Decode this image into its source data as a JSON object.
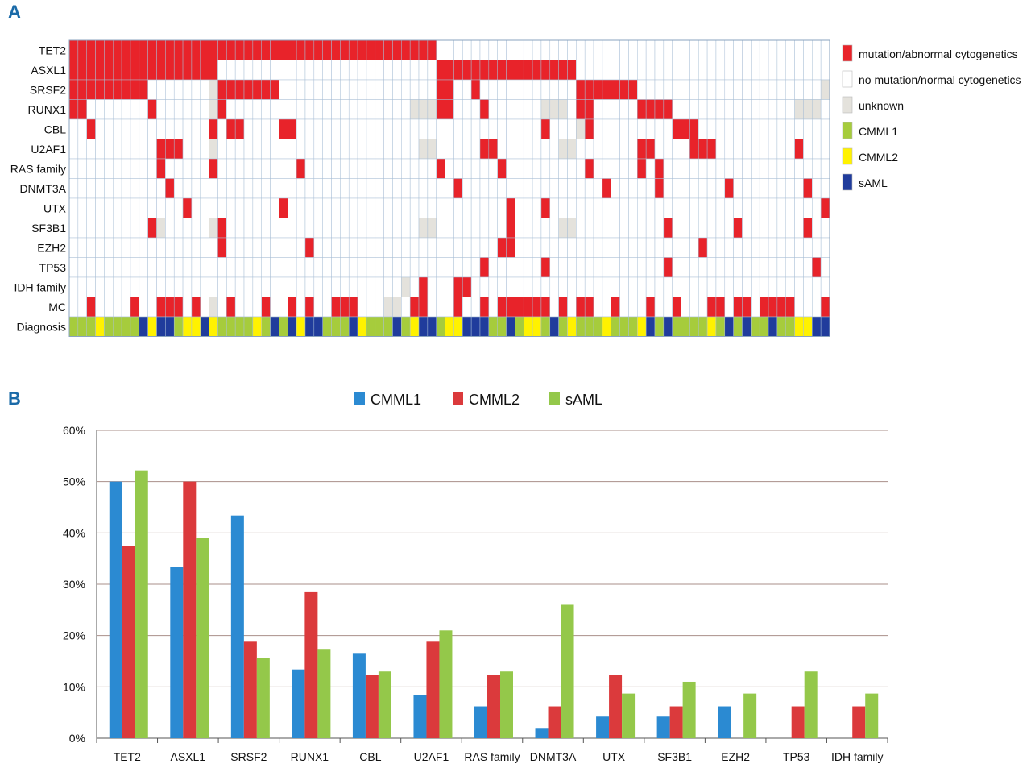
{
  "panels": {
    "a_label": "A",
    "b_label": "B"
  },
  "colors": {
    "mutation": "#e8232a",
    "normal": "#ffffff",
    "unknown": "#e4e2dc",
    "cmml1": "#a6cc3c",
    "cmml2": "#fff200",
    "saml": "#203c9c",
    "bar_cmml1": "#2b8ad2",
    "bar_cmml2": "#db3a3c",
    "bar_saml": "#94c84a",
    "grid": "#1a6aa8"
  },
  "oncoprint": {
    "legend": [
      {
        "key": "mutation",
        "label": "mutation/abnormal cytogenetics"
      },
      {
        "key": "normal",
        "label": "no mutation/normal cytogenetics"
      },
      {
        "key": "unknown",
        "label": "unknown"
      },
      {
        "key": "cmml1",
        "label": "CMML1"
      },
      {
        "key": "cmml2",
        "label": "CMML2"
      },
      {
        "key": "saml",
        "label": "sAML"
      }
    ],
    "row_labels": [
      "TET2",
      "ASXL1",
      "SRSF2",
      "RUNX1",
      "CBL",
      "U2AF1",
      "RAS family",
      "DNMT3A",
      "UTX",
      "SF3B1",
      "EZH2",
      "TP53",
      "IDH family",
      "MC",
      "Diagnosis"
    ],
    "num_patients": 87,
    "rows": [
      {
        "gene": "TET2",
        "mut": [
          [
            0,
            41
          ]
        ],
        "unk": []
      },
      {
        "gene": "ASXL1",
        "mut": [
          [
            0,
            16
          ],
          [
            42,
            57
          ]
        ],
        "unk": []
      },
      {
        "gene": "SRSF2",
        "mut": [
          [
            0,
            8
          ],
          [
            17,
            23
          ],
          [
            42,
            43
          ],
          [
            46,
            46
          ],
          [
            58,
            64
          ]
        ],
        "unk": [
          [
            16,
            16
          ],
          [
            86,
            86
          ]
        ]
      },
      {
        "gene": "RUNX1",
        "mut": [
          [
            0,
            1
          ],
          [
            9,
            9
          ],
          [
            17,
            17
          ],
          [
            42,
            43
          ],
          [
            47,
            47
          ],
          [
            58,
            59
          ],
          [
            65,
            68
          ]
        ],
        "unk": [
          [
            16,
            16
          ],
          [
            39,
            41
          ],
          [
            54,
            56
          ],
          [
            83,
            85
          ]
        ]
      },
      {
        "gene": "CBL",
        "mut": [
          [
            2,
            2
          ],
          [
            16,
            16
          ],
          [
            18,
            19
          ],
          [
            24,
            25
          ],
          [
            59,
            59
          ],
          [
            54,
            54
          ],
          [
            69,
            71
          ]
        ],
        "unk": [
          [
            58,
            58
          ]
        ]
      },
      {
        "gene": "U2AF1",
        "mut": [
          [
            10,
            12
          ],
          [
            47,
            48
          ],
          [
            65,
            66
          ],
          [
            71,
            73
          ],
          [
            83,
            83
          ]
        ],
        "unk": [
          [
            16,
            16
          ],
          [
            40,
            41
          ],
          [
            56,
            57
          ]
        ]
      },
      {
        "gene": "RAS family",
        "mut": [
          [
            10,
            10
          ],
          [
            16,
            16
          ],
          [
            26,
            26
          ],
          [
            42,
            42
          ],
          [
            49,
            49
          ],
          [
            59,
            59
          ],
          [
            65,
            65
          ],
          [
            67,
            67
          ]
        ],
        "unk": []
      },
      {
        "gene": "DNMT3A",
        "mut": [
          [
            11,
            11
          ],
          [
            44,
            44
          ],
          [
            61,
            61
          ],
          [
            67,
            67
          ],
          [
            75,
            75
          ],
          [
            84,
            84
          ]
        ],
        "unk": []
      },
      {
        "gene": "UTX",
        "mut": [
          [
            13,
            13
          ],
          [
            24,
            24
          ],
          [
            50,
            50
          ],
          [
            54,
            54
          ],
          [
            86,
            86
          ]
        ],
        "unk": []
      },
      {
        "gene": "SF3B1",
        "mut": [
          [
            9,
            9
          ],
          [
            17,
            17
          ],
          [
            50,
            50
          ],
          [
            68,
            68
          ],
          [
            76,
            76
          ],
          [
            84,
            84
          ]
        ],
        "unk": [
          [
            10,
            10
          ],
          [
            16,
            16
          ],
          [
            40,
            41
          ],
          [
            56,
            57
          ]
        ]
      },
      {
        "gene": "EZH2",
        "mut": [
          [
            17,
            17
          ],
          [
            27,
            27
          ],
          [
            49,
            50
          ],
          [
            72,
            72
          ]
        ],
        "unk": []
      },
      {
        "gene": "TP53",
        "mut": [
          [
            47,
            47
          ],
          [
            54,
            54
          ],
          [
            68,
            68
          ],
          [
            85,
            85
          ]
        ],
        "unk": []
      },
      {
        "gene": "IDH family",
        "mut": [
          [
            40,
            40
          ],
          [
            44,
            45
          ]
        ],
        "unk": [
          [
            38,
            38
          ]
        ]
      },
      {
        "gene": "MC",
        "mut": [
          [
            2,
            2
          ],
          [
            7,
            7
          ],
          [
            10,
            12
          ],
          [
            14,
            14
          ],
          [
            18,
            18
          ],
          [
            22,
            22
          ],
          [
            25,
            25
          ],
          [
            27,
            27
          ],
          [
            30,
            32
          ],
          [
            39,
            40
          ],
          [
            44,
            44
          ],
          [
            47,
            47
          ],
          [
            49,
            54
          ],
          [
            56,
            56
          ],
          [
            58,
            59
          ],
          [
            62,
            62
          ],
          [
            66,
            66
          ],
          [
            69,
            69
          ],
          [
            73,
            74
          ],
          [
            76,
            77
          ],
          [
            79,
            82
          ],
          [
            86,
            86
          ]
        ],
        "unk": [
          [
            16,
            16
          ],
          [
            36,
            37
          ]
        ]
      },
      {
        "gene": "Diagnosis",
        "diag": [
          [
            0,
            2,
            "cmml1"
          ],
          [
            3,
            3,
            "cmml2"
          ],
          [
            4,
            7,
            "cmml1"
          ],
          [
            8,
            8,
            "saml"
          ],
          [
            9,
            9,
            "cmml2"
          ],
          [
            10,
            11,
            "saml"
          ],
          [
            12,
            12,
            "cmml1"
          ],
          [
            13,
            14,
            "cmml2"
          ],
          [
            15,
            15,
            "saml"
          ],
          [
            16,
            16,
            "cmml2"
          ],
          [
            17,
            20,
            "cmml1"
          ],
          [
            21,
            21,
            "cmml2"
          ],
          [
            22,
            22,
            "cmml1"
          ],
          [
            23,
            23,
            "saml"
          ],
          [
            24,
            24,
            "cmml1"
          ],
          [
            25,
            25,
            "saml"
          ],
          [
            26,
            26,
            "cmml2"
          ],
          [
            27,
            28,
            "saml"
          ],
          [
            29,
            31,
            "cmml1"
          ],
          [
            32,
            32,
            "saml"
          ],
          [
            33,
            33,
            "cmml2"
          ],
          [
            34,
            36,
            "cmml1"
          ],
          [
            37,
            37,
            "saml"
          ],
          [
            38,
            38,
            "cmml1"
          ],
          [
            39,
            39,
            "cmml2"
          ],
          [
            40,
            41,
            "saml"
          ],
          [
            42,
            42,
            "cmml1"
          ],
          [
            43,
            44,
            "cmml2"
          ],
          [
            45,
            47,
            "saml"
          ],
          [
            48,
            49,
            "cmml1"
          ],
          [
            50,
            50,
            "saml"
          ],
          [
            51,
            51,
            "cmml1"
          ],
          [
            52,
            53,
            "cmml2"
          ],
          [
            54,
            54,
            "cmml1"
          ],
          [
            55,
            55,
            "saml"
          ],
          [
            56,
            56,
            "cmml1"
          ],
          [
            57,
            57,
            "cmml2"
          ],
          [
            58,
            60,
            "cmml1"
          ],
          [
            61,
            61,
            "cmml2"
          ],
          [
            62,
            64,
            "cmml1"
          ],
          [
            65,
            65,
            "cmml2"
          ],
          [
            66,
            66,
            "saml"
          ],
          [
            67,
            67,
            "cmml1"
          ],
          [
            68,
            68,
            "saml"
          ],
          [
            69,
            72,
            "cmml1"
          ],
          [
            73,
            73,
            "cmml2"
          ],
          [
            74,
            74,
            "cmml1"
          ],
          [
            75,
            75,
            "saml"
          ],
          [
            76,
            76,
            "cmml1"
          ],
          [
            77,
            77,
            "saml"
          ],
          [
            78,
            79,
            "cmml1"
          ],
          [
            80,
            80,
            "saml"
          ],
          [
            81,
            82,
            "cmml1"
          ],
          [
            83,
            84,
            "cmml2"
          ],
          [
            85,
            86,
            "saml"
          ]
        ]
      }
    ]
  },
  "chart_data": {
    "type": "bar",
    "categories": [
      "TET2",
      "ASXL1",
      "SRSF2",
      "RUNX1",
      "CBL",
      "U2AF1",
      "RAS family",
      "DNMT3A",
      "UTX",
      "SF3B1",
      "EZH2",
      "TP53",
      "IDH family"
    ],
    "series": [
      {
        "name": "CMML1",
        "values": [
          50,
          33.3,
          43.4,
          13.4,
          16.6,
          8.4,
          6.2,
          2,
          4.2,
          4.2,
          6.2,
          0,
          0
        ]
      },
      {
        "name": "CMML2",
        "values": [
          37.5,
          50,
          18.8,
          28.6,
          12.4,
          18.8,
          12.4,
          6.2,
          12.4,
          6.2,
          0,
          6.2,
          6.2
        ]
      },
      {
        "name": "sAML",
        "values": [
          52.2,
          39.1,
          15.7,
          17.4,
          13,
          21,
          13,
          26,
          8.7,
          11,
          8.7,
          13,
          8.7
        ]
      }
    ],
    "y_ticks": [
      "0%",
      "10%",
      "20%",
      "30%",
      "40%",
      "50%",
      "60%"
    ],
    "ylim": [
      0,
      60
    ],
    "title": "",
    "xlabel": "",
    "ylabel": "",
    "legend_position": "top-center",
    "grid": true
  }
}
